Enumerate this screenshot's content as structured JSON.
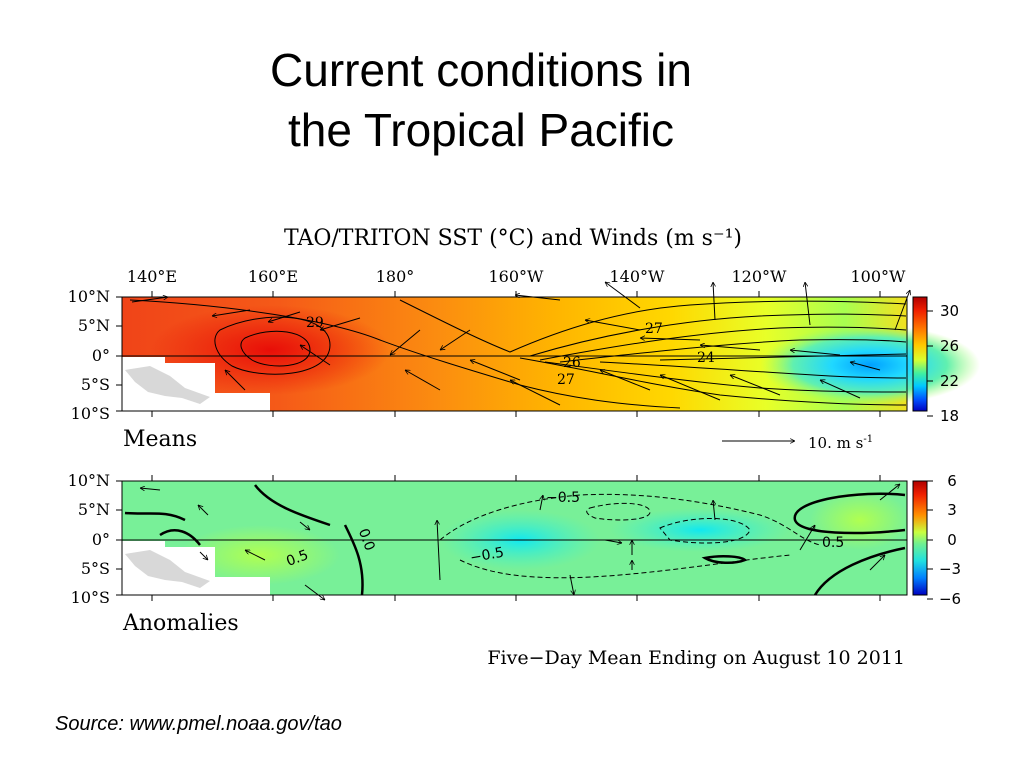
{
  "slide": {
    "title_line1": "Current conditions in",
    "title_line2": "the Tropical Pacific",
    "source": "Source:  www.pmel.noaa.gov/tao"
  },
  "chart_data": [
    {
      "type": "heatmap",
      "panel": "means",
      "title": "TAO/TRITON SST (°C) and Winds (m s⁻¹)",
      "label": "Means",
      "x_tick_labels": [
        "140°E",
        "160°E",
        "180°",
        "160°W",
        "140°W",
        "120°W",
        "100°W"
      ],
      "x_tick_values": [
        140,
        160,
        180,
        200,
        220,
        240,
        260
      ],
      "xlim": [
        137,
        272
      ],
      "y_tick_labels": [
        "10°N",
        "5°N",
        "0°",
        "5°S",
        "10°S"
      ],
      "y_tick_values": [
        10,
        5,
        0,
        -5,
        -10
      ],
      "ylim": [
        -10,
        10
      ],
      "colorbar_ticks": [
        30,
        26,
        22,
        18
      ],
      "colorbar_range": [
        18,
        31
      ],
      "contour_labels": [
        "29",
        "27",
        "26",
        "27",
        "27",
        "24"
      ],
      "wind_reference_label": "10.  m s",
      "wind_reference_unit_exp": "-1",
      "wind_reference_speed": 10
    },
    {
      "type": "heatmap",
      "panel": "anomalies",
      "label": "Anomalies",
      "x_tick_values": [
        140,
        160,
        180,
        200,
        220,
        240,
        260
      ],
      "xlim": [
        137,
        272
      ],
      "y_tick_labels": [
        "10°N",
        "5°N",
        "0°",
        "5°S",
        "10°S"
      ],
      "y_tick_values": [
        10,
        5,
        0,
        -5,
        -10
      ],
      "ylim": [
        -10,
        10
      ],
      "colorbar_ticks": [
        "6",
        "3",
        "0",
        "−3",
        "−6"
      ],
      "colorbar_range": [
        -6,
        6
      ],
      "contour_labels": [
        "−0.5",
        "0.5",
        "0.0",
        "0.5",
        "−0.5",
        "0.5"
      ],
      "footer": "Five−Day Mean Ending on August 10 2011"
    }
  ]
}
